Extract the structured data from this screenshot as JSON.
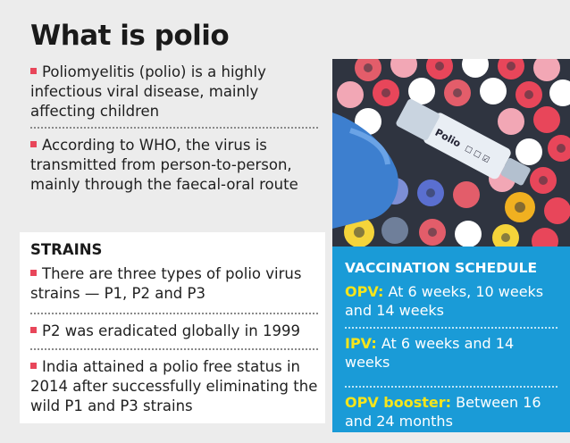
{
  "title": "What is polio",
  "intro": [
    "Poliomyelitis (polio) is a highly infectious viral disease, mainly affecting children",
    "According to WHO, the virus is transmitted from person-to-person, mainly through the faecal-oral route"
  ],
  "strains": {
    "heading": "STRAINS",
    "items": [
      "There are three types of polio virus strains — P1, P2 and P3",
      "P2 was eradicated globally in 1999",
      "India attained a polio free status in 2014 after successfully eliminating the wild P1 and P3 strains"
    ]
  },
  "photo": {
    "label_text": "Polio",
    "label_boxes": "☐ ☐ ☑"
  },
  "vaccination": {
    "heading": "VACCINATION SCHEDULE",
    "items": [
      {
        "name": "OPV:",
        "detail": "At 6 weeks, 10 weeks and 14 weeks"
      },
      {
        "name": "IPV:",
        "detail": "At 6 weeks and 14 weeks"
      },
      {
        "name": "OPV booster:",
        "detail": "Between 16 and 24 months"
      }
    ]
  },
  "colors": {
    "bullet": "#e8465a",
    "vaccination_panel": "#1a9bd7",
    "vaccine_name": "#f5e51b"
  }
}
